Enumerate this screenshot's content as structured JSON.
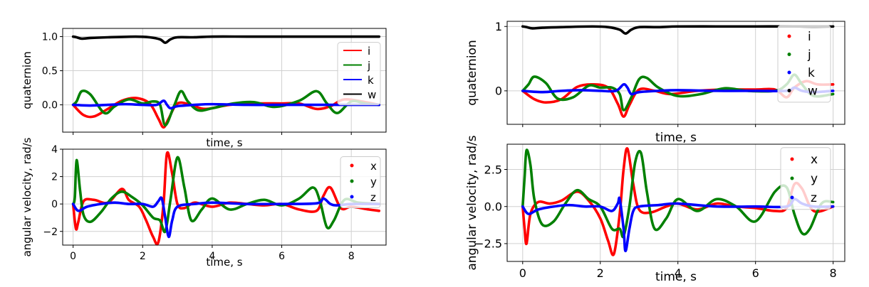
{
  "chart_data": [
    {
      "type": "line",
      "panel": "left-top",
      "xlabel": "time, s",
      "ylabel": "quaternion",
      "xlim": [
        -0.3,
        9.0
      ],
      "ylim": [
        -0.4,
        1.12
      ],
      "x_ticks": [
        0,
        2,
        4,
        6,
        8
      ],
      "y_ticks": [
        0.0,
        0.5,
        1.0
      ],
      "y_tick_labels": [
        "0.0",
        "0.5",
        "1.0"
      ],
      "show_x_tick_labels": false,
      "grid": true,
      "legend_position": "right",
      "legend_style": "line",
      "series": [
        {
          "name": "i",
          "color": "#ff0000",
          "x": [
            0,
            0.3,
            0.6,
            1.0,
            1.4,
            1.8,
            2.2,
            2.45,
            2.6,
            2.75,
            3.0,
            3.4,
            3.8,
            4.5,
            5.2,
            6.0,
            6.5,
            7.0,
            7.4,
            7.8,
            8.4,
            8.8
          ],
          "y": [
            0,
            -0.15,
            -0.17,
            -0.06,
            0.06,
            0.1,
            0.02,
            -0.2,
            -0.33,
            -0.2,
            0.02,
            0,
            -0.06,
            0,
            0.02,
            0.02,
            0.02,
            -0.06,
            -0.02,
            0.08,
            0.04,
            0
          ]
        },
        {
          "name": "j",
          "color": "#008000",
          "x": [
            0,
            0.1,
            0.25,
            0.5,
            0.9,
            1.2,
            1.6,
            2.0,
            2.3,
            2.5,
            2.65,
            2.9,
            3.1,
            3.3,
            3.6,
            4.0,
            4.6,
            5.2,
            5.8,
            6.5,
            7.0,
            7.3,
            7.6,
            8.0,
            8.4,
            8.8
          ],
          "y": [
            0,
            0.05,
            0.2,
            0.15,
            -0.12,
            -0.02,
            0.08,
            0.02,
            0.05,
            0.0,
            -0.3,
            -0.02,
            0.2,
            0.05,
            -0.08,
            -0.05,
            0.02,
            0.04,
            -0.03,
            0.06,
            0.2,
            0.02,
            -0.12,
            0.05,
            0.02,
            0
          ]
        },
        {
          "name": "k",
          "color": "#0000ff",
          "x": [
            0,
            0.5,
            1.0,
            1.5,
            2.0,
            2.4,
            2.6,
            2.7,
            2.8,
            3.0,
            3.5,
            4.0,
            5.0,
            6.0,
            7.0,
            8.0,
            8.8
          ],
          "y": [
            0,
            -0.01,
            0.0,
            0.01,
            0.0,
            0.0,
            0.06,
            0.0,
            -0.05,
            -0.02,
            0.0,
            0.01,
            0.0,
            0.0,
            0.0,
            0.0,
            0
          ]
        },
        {
          "name": "w",
          "color": "#000000",
          "x": [
            0,
            0.1,
            0.25,
            0.5,
            1.0,
            1.8,
            2.2,
            2.5,
            2.65,
            2.8,
            3.0,
            3.5,
            4.0,
            5.0,
            6.0,
            7.0,
            8.0,
            8.8
          ],
          "y": [
            1.0,
            0.99,
            0.97,
            0.98,
            0.99,
            1.0,
            0.99,
            0.96,
            0.91,
            0.96,
            0.99,
            0.99,
            1.0,
            1.0,
            1.0,
            1.0,
            1.0,
            1.0
          ]
        }
      ]
    },
    {
      "type": "line",
      "panel": "left-bottom",
      "xlabel": "time, s",
      "ylabel": "angular velocity, rad/s",
      "xlim": [
        -0.3,
        9.0
      ],
      "ylim": [
        -3.0,
        4.0
      ],
      "x_ticks": [
        0,
        2,
        4,
        6,
        8
      ],
      "x_tick_labels": [
        "0",
        "2",
        "4",
        "6",
        "8"
      ],
      "y_ticks": [
        -2,
        0,
        2,
        4
      ],
      "y_tick_labels": [
        "−2",
        "0",
        "2",
        "4"
      ],
      "grid": true,
      "legend_position": "top-right",
      "legend_style": "dot",
      "series": [
        {
          "name": "x",
          "color": "#ff0000",
          "x": [
            0,
            0.08,
            0.15,
            0.3,
            0.6,
            1.0,
            1.4,
            1.6,
            1.9,
            2.1,
            2.3,
            2.45,
            2.6,
            2.7,
            2.85,
            3.0,
            3.2,
            3.5,
            4.0,
            4.5,
            5.0,
            5.5,
            6.0,
            6.5,
            7.0,
            7.2,
            7.4,
            7.7,
            8.0,
            8.5,
            8.8
          ],
          "y": [
            0,
            -1.8,
            -1.3,
            0.2,
            0.3,
            0.1,
            1.1,
            0.3,
            -0.2,
            -1.2,
            -2.4,
            -2.8,
            0,
            3.7,
            2.2,
            0,
            -0.3,
            0.1,
            -0.2,
            0.1,
            0,
            -0.1,
            0,
            -0.4,
            -0.5,
            0.6,
            1.2,
            -0.3,
            -0.2,
            -0.4,
            -0.5
          ]
        },
        {
          "name": "y",
          "color": "#008000",
          "x": [
            0,
            0.05,
            0.1,
            0.2,
            0.3,
            0.5,
            0.8,
            1.1,
            1.4,
            1.7,
            2.0,
            2.3,
            2.5,
            2.65,
            2.8,
            3.0,
            3.2,
            3.4,
            3.7,
            4.0,
            4.5,
            5.0,
            5.5,
            6.0,
            6.5,
            6.9,
            7.1,
            7.3,
            7.5,
            7.8,
            8.2,
            8.8
          ],
          "y": [
            0,
            0.5,
            3.2,
            1.0,
            -0.8,
            -1.3,
            -0.6,
            0.4,
            0.9,
            0.5,
            -0.1,
            -1.0,
            -1.2,
            -2.0,
            0.3,
            3.4,
            1.2,
            -1.2,
            -0.4,
            0.4,
            -0.4,
            0.0,
            0.3,
            -0.1,
            0.4,
            1.2,
            0.2,
            -1.7,
            -1.2,
            0.3,
            0.1,
            0
          ]
        },
        {
          "name": "z",
          "color": "#0000ff",
          "x": [
            0,
            0.15,
            0.4,
            0.8,
            1.2,
            1.6,
            2.0,
            2.3,
            2.45,
            2.55,
            2.65,
            2.75,
            2.85,
            3.0,
            3.5,
            4.0,
            5.0,
            6.0,
            7.0,
            7.2,
            7.4,
            7.6,
            8.0,
            8.8
          ],
          "y": [
            0,
            -0.5,
            -0.2,
            0.0,
            0.1,
            0.0,
            0.0,
            -0.2,
            0.2,
            0.4,
            -1.0,
            -2.4,
            -1.2,
            -0.2,
            0.0,
            0.1,
            0.0,
            0.0,
            0.05,
            0.4,
            0.0,
            -0.1,
            0.0,
            0
          ]
        }
      ]
    },
    {
      "type": "scatter",
      "panel": "right-top",
      "xlabel": "time, s",
      "ylabel": "quaternion",
      "xlim": [
        -0.4,
        8.3
      ],
      "ylim": [
        -0.52,
        1.08
      ],
      "x_ticks": [
        0,
        2,
        4,
        6,
        8
      ],
      "y_ticks": [
        0,
        1
      ],
      "y_tick_labels": [
        "0",
        "1"
      ],
      "show_x_tick_labels": false,
      "grid": true,
      "legend_position": "right",
      "legend_style": "dot",
      "series": [
        {
          "name": "i",
          "color": "#ff0000",
          "x": [
            0,
            0.3,
            0.6,
            1.0,
            1.4,
            1.8,
            2.2,
            2.45,
            2.6,
            2.75,
            3.0,
            3.4,
            3.8,
            4.5,
            5.2,
            6.0,
            6.5,
            6.8,
            7.0,
            7.3,
            7.6,
            8.0
          ],
          "y": [
            0,
            -0.13,
            -0.18,
            -0.13,
            0.06,
            0.1,
            0.05,
            -0.2,
            -0.4,
            -0.22,
            0.02,
            0,
            -0.05,
            0,
            0.02,
            0.02,
            0.02,
            -0.1,
            0.05,
            0.15,
            0.1,
            0.1
          ]
        },
        {
          "name": "j",
          "color": "#008000",
          "x": [
            0,
            0.15,
            0.3,
            0.6,
            0.9,
            1.3,
            1.7,
            2.0,
            2.3,
            2.5,
            2.6,
            2.8,
            3.0,
            3.2,
            3.5,
            4.0,
            4.6,
            5.2,
            5.8,
            6.5,
            6.8,
            7.0,
            7.2,
            7.5,
            8.0
          ],
          "y": [
            0,
            0.1,
            0.22,
            0.12,
            -0.12,
            -0.1,
            0.08,
            0.05,
            0.05,
            -0.05,
            -0.3,
            -0.1,
            0.18,
            0.2,
            0.05,
            -0.08,
            -0.05,
            0.04,
            0.0,
            0.0,
            0.1,
            0.25,
            0.1,
            -0.08,
            -0.05
          ]
        },
        {
          "name": "k",
          "color": "#0000ff",
          "x": [
            0,
            0.5,
            1.0,
            1.5,
            2.0,
            2.4,
            2.6,
            2.7,
            2.8,
            3.0,
            3.5,
            4.0,
            5.0,
            6.0,
            6.8,
            7.0,
            7.2,
            7.5,
            8.0
          ],
          "y": [
            0,
            -0.02,
            0.0,
            0.01,
            0.0,
            0.0,
            0.1,
            0.05,
            -0.05,
            -0.02,
            0.0,
            0.01,
            0.0,
            0.0,
            0.0,
            0.05,
            0.0,
            -0.02,
            0
          ]
        },
        {
          "name": "w",
          "color": "#000000",
          "x": [
            0,
            0.1,
            0.25,
            0.5,
            1.0,
            1.8,
            2.2,
            2.5,
            2.65,
            2.8,
            3.0,
            3.5,
            4.0,
            5.0,
            6.0,
            7.0,
            7.5,
            8.0
          ],
          "y": [
            1.0,
            0.99,
            0.97,
            0.98,
            0.99,
            1.0,
            0.99,
            0.95,
            0.89,
            0.95,
            0.99,
            0.99,
            1.0,
            1.0,
            1.0,
            1.0,
            0.99,
            1.0
          ]
        }
      ]
    },
    {
      "type": "scatter",
      "panel": "right-bottom",
      "xlabel": "time, s",
      "ylabel": "angular velocity, rad/s",
      "xlim": [
        -0.4,
        8.3
      ],
      "ylim": [
        -3.7,
        4.2
      ],
      "x_ticks": [
        0,
        2,
        4,
        6,
        8
      ],
      "x_tick_labels": [
        "0",
        "2",
        "4",
        "6",
        "8"
      ],
      "y_ticks": [
        -2.5,
        0,
        2.5
      ],
      "y_tick_labels": [
        "−2.5",
        "0.0",
        "2.5"
      ],
      "grid": true,
      "legend_position": "top-right",
      "legend_style": "dot",
      "series": [
        {
          "name": "x",
          "color": "#ff0000",
          "x": [
            0,
            0.05,
            0.1,
            0.2,
            0.4,
            0.7,
            1.0,
            1.4,
            1.7,
            2.0,
            2.2,
            2.35,
            2.5,
            2.6,
            2.7,
            2.85,
            3.0,
            3.3,
            3.7,
            4.0,
            4.5,
            5.0,
            5.5,
            6.0,
            6.5,
            6.8,
            7.0,
            7.2,
            7.5,
            8.0
          ],
          "y": [
            0,
            -1.5,
            -2.5,
            -0.5,
            0.3,
            0.2,
            0.4,
            1.0,
            0.4,
            -0.8,
            -2.3,
            -3.2,
            -0.5,
            2.5,
            3.9,
            1.5,
            -0.2,
            -0.4,
            0.0,
            0.2,
            -0.2,
            0.2,
            0.0,
            -0.1,
            -0.3,
            -0.1,
            1.5,
            1.2,
            -0.3,
            0
          ]
        },
        {
          "name": "y",
          "color": "#008000",
          "x": [
            0,
            0.05,
            0.1,
            0.2,
            0.3,
            0.5,
            0.8,
            1.1,
            1.4,
            1.7,
            2.0,
            2.3,
            2.5,
            2.6,
            2.75,
            2.9,
            3.05,
            3.2,
            3.4,
            3.7,
            4.0,
            4.5,
            5.0,
            5.5,
            6.0,
            6.5,
            6.8,
            7.0,
            7.2,
            7.4,
            7.7,
            8.0
          ],
          "y": [
            0,
            2.0,
            3.8,
            2.8,
            0.5,
            -1.2,
            -1.0,
            0.2,
            1.1,
            0.5,
            0.0,
            -1.5,
            -1.5,
            -2.0,
            0.0,
            3.0,
            3.6,
            1.0,
            -1.5,
            -0.8,
            0.5,
            -0.3,
            0.5,
            0.0,
            -1.0,
            1.0,
            1.3,
            -0.5,
            -1.8,
            -1.5,
            0.2,
            0.3
          ]
        },
        {
          "name": "z",
          "color": "#0000ff",
          "x": [
            0,
            0.15,
            0.4,
            0.8,
            1.2,
            1.6,
            2.0,
            2.3,
            2.45,
            2.5,
            2.6,
            2.65,
            2.75,
            2.85,
            3.0,
            3.5,
            4.0,
            5.0,
            6.0,
            6.8,
            7.0,
            7.2,
            7.5,
            8.0
          ],
          "y": [
            0,
            -0.5,
            -0.2,
            0.0,
            0.1,
            0.0,
            0.0,
            -0.3,
            0.2,
            0.5,
            -1.5,
            -3.0,
            -1.5,
            -0.3,
            0.0,
            0.1,
            0.2,
            0.0,
            0.0,
            0.0,
            0.5,
            0.2,
            0.0,
            0
          ]
        }
      ]
    }
  ]
}
